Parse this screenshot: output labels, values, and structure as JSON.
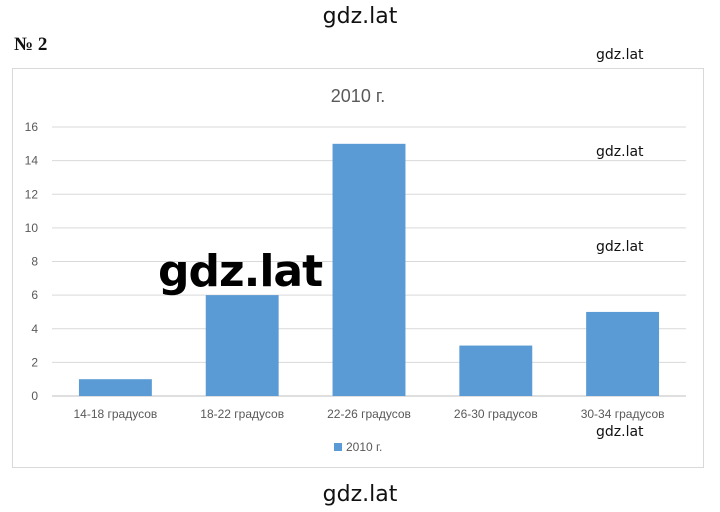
{
  "header_watermark": "gdz.lat",
  "task_number": "№ 2",
  "watermarks": {
    "side_1": "gdz.lat",
    "side_2": "gdz.lat",
    "side_3": "gdz.lat",
    "side_4": "gdz.lat",
    "big": "gdz.lat",
    "footer": "gdz.lat"
  },
  "chart_data": {
    "type": "bar",
    "title": "2010 г.",
    "categories": [
      "14-18 градусов",
      "18-22 градусов",
      "22-26 градусов",
      "26-30 градусов",
      "30-34 градусов"
    ],
    "series": [
      {
        "name": "2010 г.",
        "values": [
          1,
          6,
          15,
          3,
          5
        ],
        "color": "#5b9bd5"
      }
    ],
    "ylim": [
      0,
      16
    ],
    "yticks": [
      0,
      2,
      4,
      6,
      8,
      10,
      12,
      14,
      16
    ],
    "grid": true,
    "legend_position": "bottom"
  }
}
